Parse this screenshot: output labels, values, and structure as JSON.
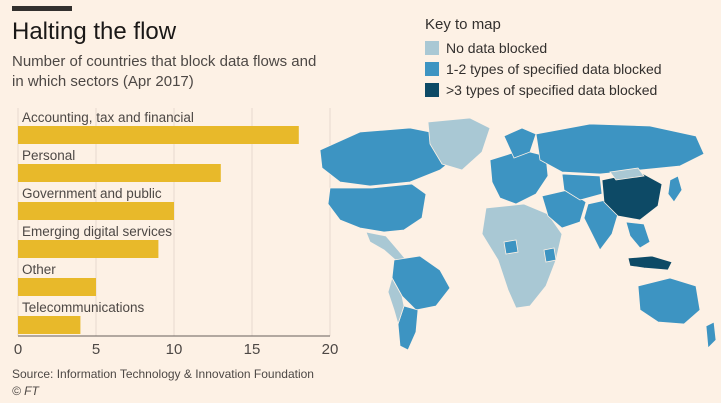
{
  "header": {
    "title": "Halting the flow",
    "subtitle": "Number of countries that block data flows and in which sectors (Apr 2017)"
  },
  "key": {
    "title": "Key to map",
    "items": [
      {
        "label": "No data blocked",
        "color": "#a9c8d4"
      },
      {
        "label": "1-2 types of specified data blocked",
        "color": "#3d94c2"
      },
      {
        "label": ">3 types of specified data blocked",
        "color": "#0d4a66"
      }
    ]
  },
  "chart_data": {
    "type": "bar",
    "orientation": "horizontal",
    "categories": [
      "Accounting, tax and financial",
      "Personal",
      "Government and public",
      "Emerging digital services",
      "Other",
      "Telecommunications"
    ],
    "values": [
      18,
      13,
      10,
      9,
      5,
      4
    ],
    "xlim": [
      0,
      20
    ],
    "xticks": [
      "0",
      "5",
      "10",
      "15",
      "20"
    ],
    "bar_color": "#e8b92a",
    "grid": true
  },
  "footer": {
    "source": "Source: Information Technology & Innovation Foundation",
    "credit": "© FT"
  }
}
